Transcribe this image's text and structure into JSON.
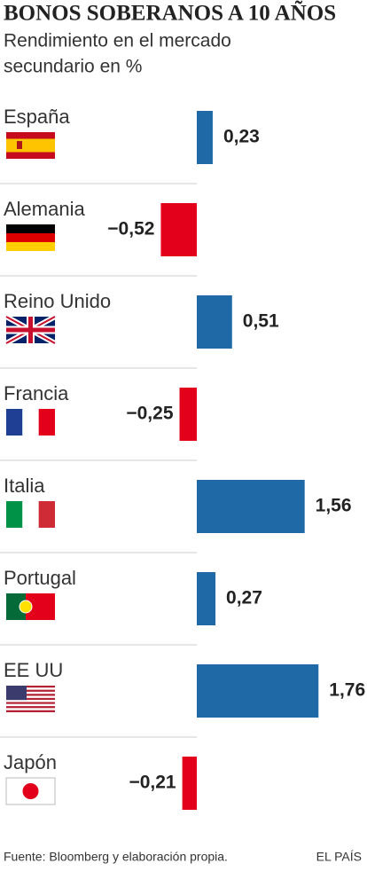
{
  "chart_data": {
    "type": "bar",
    "orientation": "horizontal",
    "title": "BONOS SOBERANOS A 10 AÑOS",
    "subtitle_lines": [
      "Rendimiento en el mercado",
      "secundario en %"
    ],
    "categories": [
      "España",
      "Alemania",
      "Reino Unido",
      "Francia",
      "Italia",
      "Portugal",
      "EE UU",
      "Japón"
    ],
    "values": [
      0.23,
      -0.52,
      0.51,
      -0.25,
      1.56,
      0.27,
      1.76,
      -0.21
    ],
    "value_labels": [
      "0,23",
      "−0,52",
      "0,51",
      "−0,25",
      "1,56",
      "0,27",
      "1,76",
      "−0,21"
    ],
    "positive_color": "#1f6aa6",
    "negative_color": "#e3001b",
    "source": "Fuente: Bloomberg y elaboración propia.",
    "brand": "EL PAÍS"
  }
}
